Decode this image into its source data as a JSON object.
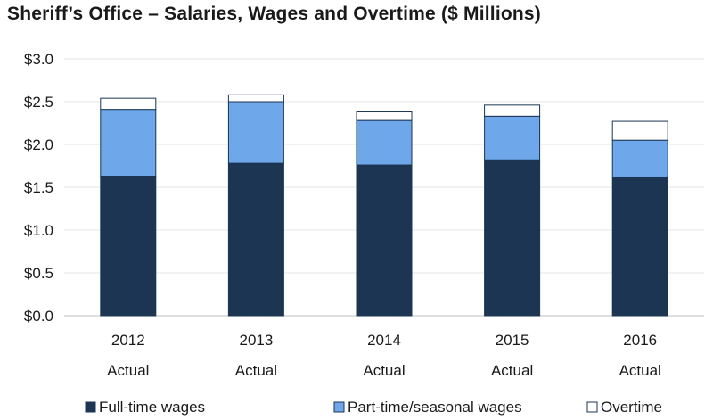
{
  "chart_data": {
    "type": "bar",
    "stacked": true,
    "title": "Sheriff’s Office – Salaries, Wages and Overtime ($ Millions)",
    "xlabel": "",
    "ylabel": "",
    "ylim": [
      0,
      3.0
    ],
    "yticks": [
      "$0.0",
      "$0.5",
      "$1.0",
      "$1.5",
      "$2.0",
      "$2.5",
      "$3.0"
    ],
    "ytick_values": [
      0,
      0.5,
      1.0,
      1.5,
      2.0,
      2.5,
      3.0
    ],
    "grid": true,
    "legend_position": "bottom",
    "categories": [
      {
        "year": "2012",
        "sub": "Actual"
      },
      {
        "year": "2013",
        "sub": "Actual"
      },
      {
        "year": "2014",
        "sub": "Actual"
      },
      {
        "year": "2015",
        "sub": "Actual"
      },
      {
        "year": "2016",
        "sub": "Actual"
      }
    ],
    "series": [
      {
        "name": "Full-time wages",
        "color": "#1b3553",
        "values": [
          1.63,
          1.78,
          1.76,
          1.82,
          1.62
        ]
      },
      {
        "name": "Part-time/seasonal wages",
        "color": "#6ea7ea",
        "values": [
          0.78,
          0.72,
          0.52,
          0.51,
          0.43
        ]
      },
      {
        "name": "Overtime",
        "color": "#ffffff",
        "values": [
          0.13,
          0.08,
          0.1,
          0.13,
          0.22
        ]
      }
    ]
  }
}
